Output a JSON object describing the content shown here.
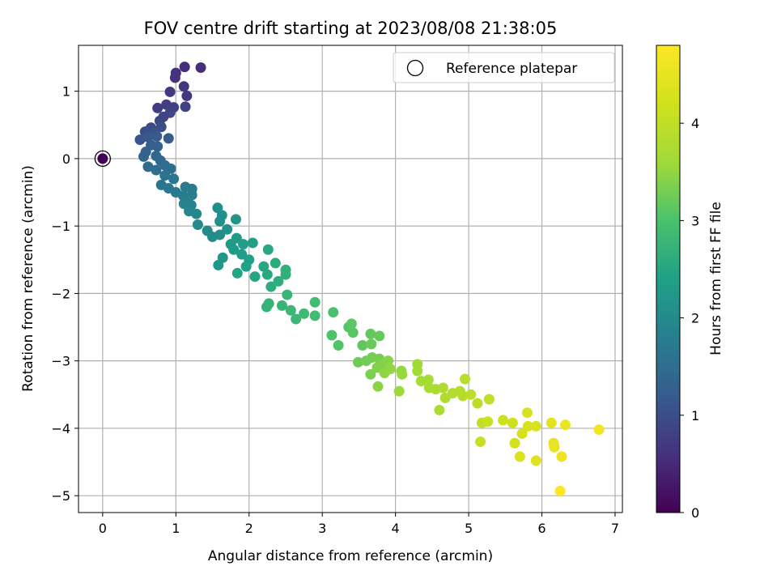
{
  "chart_data": {
    "type": "scatter",
    "title": "FOV centre drift starting at 2023/08/08 21:38:05",
    "xlabel": "Angular distance from reference (arcmin)",
    "ylabel": "Rotation from reference (arcmin)",
    "xlim": [
      -0.33,
      7.1
    ],
    "ylim": [
      -5.25,
      1.68
    ],
    "xticks": [
      0,
      1,
      2,
      3,
      4,
      5,
      6,
      7
    ],
    "yticks": [
      -5,
      -4,
      -3,
      -2,
      -1,
      0,
      1
    ],
    "grid": true,
    "legend": {
      "label": "Reference platepar",
      "position": "top-right"
    },
    "colorbar": {
      "label": "Hours from first FF file",
      "range": [
        0,
        4.8
      ],
      "ticks": [
        0,
        1,
        2,
        3,
        4
      ],
      "colormap": "viridis"
    },
    "reference_point": {
      "x": 0,
      "y": 0,
      "hours": 0
    },
    "points": [
      {
        "x": 1.12,
        "y": 1.36,
        "c": 0.55
      },
      {
        "x": 1.34,
        "y": 1.35,
        "c": 0.55
      },
      {
        "x": 1.0,
        "y": 1.27,
        "c": 0.6
      },
      {
        "x": 0.99,
        "y": 1.2,
        "c": 0.62
      },
      {
        "x": 1.11,
        "y": 1.07,
        "c": 0.65
      },
      {
        "x": 0.92,
        "y": 0.99,
        "c": 0.68
      },
      {
        "x": 1.15,
        "y": 0.93,
        "c": 0.7
      },
      {
        "x": 0.75,
        "y": 0.75,
        "c": 0.75
      },
      {
        "x": 0.87,
        "y": 0.8,
        "c": 0.78
      },
      {
        "x": 0.97,
        "y": 0.76,
        "c": 0.8
      },
      {
        "x": 1.13,
        "y": 0.77,
        "c": 0.82
      },
      {
        "x": 0.92,
        "y": 0.68,
        "c": 0.85
      },
      {
        "x": 0.83,
        "y": 0.62,
        "c": 0.88
      },
      {
        "x": 0.78,
        "y": 0.56,
        "c": 0.9
      },
      {
        "x": 0.66,
        "y": 0.46,
        "c": 0.95
      },
      {
        "x": 0.8,
        "y": 0.47,
        "c": 0.98
      },
      {
        "x": 0.58,
        "y": 0.4,
        "c": 1.0
      },
      {
        "x": 0.7,
        "y": 0.38,
        "c": 1.05
      },
      {
        "x": 0.51,
        "y": 0.28,
        "c": 1.1
      },
      {
        "x": 0.62,
        "y": 0.32,
        "c": 1.15
      },
      {
        "x": 0.74,
        "y": 0.33,
        "c": 1.18
      },
      {
        "x": 0.9,
        "y": 0.3,
        "c": 1.2
      },
      {
        "x": 0.66,
        "y": 0.2,
        "c": 1.25
      },
      {
        "x": 0.75,
        "y": 0.18,
        "c": 1.28
      },
      {
        "x": 0.59,
        "y": 0.1,
        "c": 1.3
      },
      {
        "x": 0.56,
        "y": 0.03,
        "c": 1.35
      },
      {
        "x": 0.73,
        "y": 0.04,
        "c": 1.38
      },
      {
        "x": 0.79,
        "y": -0.03,
        "c": 1.4
      },
      {
        "x": 0.62,
        "y": -0.12,
        "c": 1.45
      },
      {
        "x": 0.85,
        "y": -0.1,
        "c": 1.5
      },
      {
        "x": 0.73,
        "y": -0.17,
        "c": 1.52
      },
      {
        "x": 0.93,
        "y": -0.15,
        "c": 1.55
      },
      {
        "x": 0.85,
        "y": -0.25,
        "c": 1.6
      },
      {
        "x": 0.97,
        "y": -0.3,
        "c": 1.62
      },
      {
        "x": 0.8,
        "y": -0.39,
        "c": 1.65
      },
      {
        "x": 0.9,
        "y": -0.44,
        "c": 1.68
      },
      {
        "x": 1.0,
        "y": -0.5,
        "c": 1.7
      },
      {
        "x": 1.13,
        "y": -0.42,
        "c": 1.72
      },
      {
        "x": 1.22,
        "y": -0.45,
        "c": 1.75
      },
      {
        "x": 1.1,
        "y": -0.55,
        "c": 1.78
      },
      {
        "x": 1.22,
        "y": -0.54,
        "c": 1.8
      },
      {
        "x": 1.15,
        "y": -0.62,
        "c": 1.82
      },
      {
        "x": 1.21,
        "y": -0.69,
        "c": 1.85
      },
      {
        "x": 1.11,
        "y": -0.67,
        "c": 1.87
      },
      {
        "x": 1.18,
        "y": -0.78,
        "c": 1.9
      },
      {
        "x": 1.28,
        "y": -0.82,
        "c": 1.93
      },
      {
        "x": 1.3,
        "y": -0.98,
        "c": 1.95
      },
      {
        "x": 1.43,
        "y": -1.07,
        "c": 2.0
      },
      {
        "x": 1.5,
        "y": -1.16,
        "c": 2.02
      },
      {
        "x": 1.6,
        "y": -1.13,
        "c": 2.05
      },
      {
        "x": 1.57,
        "y": -0.73,
        "c": 2.08
      },
      {
        "x": 1.63,
        "y": -0.84,
        "c": 2.1
      },
      {
        "x": 1.6,
        "y": -0.93,
        "c": 2.12
      },
      {
        "x": 1.7,
        "y": -1.05,
        "c": 2.15
      },
      {
        "x": 1.82,
        "y": -0.9,
        "c": 2.18
      },
      {
        "x": 1.64,
        "y": -1.47,
        "c": 2.2
      },
      {
        "x": 1.58,
        "y": -1.58,
        "c": 2.22
      },
      {
        "x": 1.75,
        "y": -1.27,
        "c": 2.25
      },
      {
        "x": 1.83,
        "y": -1.18,
        "c": 2.28
      },
      {
        "x": 1.79,
        "y": -1.35,
        "c": 2.3
      },
      {
        "x": 1.92,
        "y": -1.27,
        "c": 2.32
      },
      {
        "x": 1.9,
        "y": -1.42,
        "c": 2.35
      },
      {
        "x": 2.0,
        "y": -1.5,
        "c": 2.38
      },
      {
        "x": 2.05,
        "y": -1.25,
        "c": 2.4
      },
      {
        "x": 1.96,
        "y": -1.6,
        "c": 2.42
      },
      {
        "x": 1.84,
        "y": -1.7,
        "c": 2.45
      },
      {
        "x": 2.08,
        "y": -1.75,
        "c": 2.48
      },
      {
        "x": 2.2,
        "y": -1.6,
        "c": 2.5
      },
      {
        "x": 2.26,
        "y": -1.35,
        "c": 2.52
      },
      {
        "x": 2.25,
        "y": -1.72,
        "c": 2.55
      },
      {
        "x": 2.36,
        "y": -1.55,
        "c": 2.58
      },
      {
        "x": 2.3,
        "y": -1.9,
        "c": 2.6
      },
      {
        "x": 2.4,
        "y": -1.82,
        "c": 2.62
      },
      {
        "x": 2.5,
        "y": -1.72,
        "c": 2.65
      },
      {
        "x": 2.5,
        "y": -1.65,
        "c": 2.67
      },
      {
        "x": 2.24,
        "y": -2.2,
        "c": 2.7
      },
      {
        "x": 2.27,
        "y": -2.15,
        "c": 2.72
      },
      {
        "x": 2.45,
        "y": -2.18,
        "c": 2.75
      },
      {
        "x": 2.52,
        "y": -2.02,
        "c": 2.78
      },
      {
        "x": 2.57,
        "y": -2.25,
        "c": 2.8
      },
      {
        "x": 2.64,
        "y": -2.38,
        "c": 2.82
      },
      {
        "x": 2.75,
        "y": -2.3,
        "c": 2.85
      },
      {
        "x": 2.9,
        "y": -2.33,
        "c": 2.88
      },
      {
        "x": 2.9,
        "y": -2.13,
        "c": 2.9
      },
      {
        "x": 3.15,
        "y": -2.28,
        "c": 3.0
      },
      {
        "x": 3.13,
        "y": -2.62,
        "c": 3.02
      },
      {
        "x": 3.22,
        "y": -2.77,
        "c": 3.05
      },
      {
        "x": 3.36,
        "y": -2.5,
        "c": 3.08
      },
      {
        "x": 3.42,
        "y": -2.58,
        "c": 3.1
      },
      {
        "x": 3.4,
        "y": -2.45,
        "c": 3.12
      },
      {
        "x": 3.55,
        "y": -2.77,
        "c": 3.15
      },
      {
        "x": 3.66,
        "y": -2.6,
        "c": 3.18
      },
      {
        "x": 3.78,
        "y": -2.63,
        "c": 3.2
      },
      {
        "x": 3.67,
        "y": -2.75,
        "c": 3.22
      },
      {
        "x": 3.49,
        "y": -3.02,
        "c": 3.25
      },
      {
        "x": 3.6,
        "y": -3.0,
        "c": 3.28
      },
      {
        "x": 3.68,
        "y": -2.95,
        "c": 3.3
      },
      {
        "x": 3.78,
        "y": -2.97,
        "c": 3.32
      },
      {
        "x": 3.66,
        "y": -3.2,
        "c": 3.35
      },
      {
        "x": 3.75,
        "y": -3.1,
        "c": 3.38
      },
      {
        "x": 3.83,
        "y": -3.05,
        "c": 3.4
      },
      {
        "x": 3.9,
        "y": -3.0,
        "c": 3.42
      },
      {
        "x": 3.76,
        "y": -3.38,
        "c": 3.45
      },
      {
        "x": 3.85,
        "y": -3.18,
        "c": 3.48
      },
      {
        "x": 3.93,
        "y": -3.12,
        "c": 3.5
      },
      {
        "x": 4.08,
        "y": -3.15,
        "c": 3.52
      },
      {
        "x": 4.09,
        "y": -3.2,
        "c": 3.55
      },
      {
        "x": 4.05,
        "y": -3.45,
        "c": 3.58
      },
      {
        "x": 4.3,
        "y": -3.05,
        "c": 3.6
      },
      {
        "x": 4.3,
        "y": -3.15,
        "c": 3.62
      },
      {
        "x": 4.35,
        "y": -3.3,
        "c": 3.65
      },
      {
        "x": 4.45,
        "y": -3.28,
        "c": 3.68
      },
      {
        "x": 4.46,
        "y": -3.4,
        "c": 3.7
      },
      {
        "x": 4.55,
        "y": -3.42,
        "c": 3.72
      },
      {
        "x": 4.6,
        "y": -3.73,
        "c": 3.75
      },
      {
        "x": 4.65,
        "y": -3.4,
        "c": 3.78
      },
      {
        "x": 4.68,
        "y": -3.55,
        "c": 3.8
      },
      {
        "x": 4.78,
        "y": -3.48,
        "c": 3.82
      },
      {
        "x": 4.88,
        "y": -3.45,
        "c": 3.85
      },
      {
        "x": 4.92,
        "y": -3.52,
        "c": 3.88
      },
      {
        "x": 4.95,
        "y": -3.27,
        "c": 3.9
      },
      {
        "x": 5.03,
        "y": -3.5,
        "c": 3.92
      },
      {
        "x": 5.12,
        "y": -3.63,
        "c": 3.95
      },
      {
        "x": 5.28,
        "y": -3.57,
        "c": 3.98
      },
      {
        "x": 5.18,
        "y": -3.92,
        "c": 4.05
      },
      {
        "x": 5.26,
        "y": -3.9,
        "c": 4.08
      },
      {
        "x": 5.16,
        "y": -4.2,
        "c": 4.1
      },
      {
        "x": 5.47,
        "y": -3.88,
        "c": 4.15
      },
      {
        "x": 5.6,
        "y": -3.92,
        "c": 4.2
      },
      {
        "x": 5.63,
        "y": -4.22,
        "c": 4.22
      },
      {
        "x": 5.73,
        "y": -4.08,
        "c": 4.25
      },
      {
        "x": 5.81,
        "y": -3.97,
        "c": 4.28
      },
      {
        "x": 5.8,
        "y": -3.77,
        "c": 4.3
      },
      {
        "x": 5.92,
        "y": -3.97,
        "c": 4.32
      },
      {
        "x": 5.7,
        "y": -4.42,
        "c": 4.35
      },
      {
        "x": 5.92,
        "y": -4.48,
        "c": 4.4
      },
      {
        "x": 6.13,
        "y": -3.92,
        "c": 4.45
      },
      {
        "x": 6.16,
        "y": -4.22,
        "c": 4.5
      },
      {
        "x": 6.17,
        "y": -4.28,
        "c": 4.52
      },
      {
        "x": 6.32,
        "y": -3.95,
        "c": 4.55
      },
      {
        "x": 6.27,
        "y": -4.42,
        "c": 4.6
      },
      {
        "x": 6.78,
        "y": -4.02,
        "c": 4.65
      },
      {
        "x": 6.25,
        "y": -4.93,
        "c": 4.8
      }
    ]
  }
}
